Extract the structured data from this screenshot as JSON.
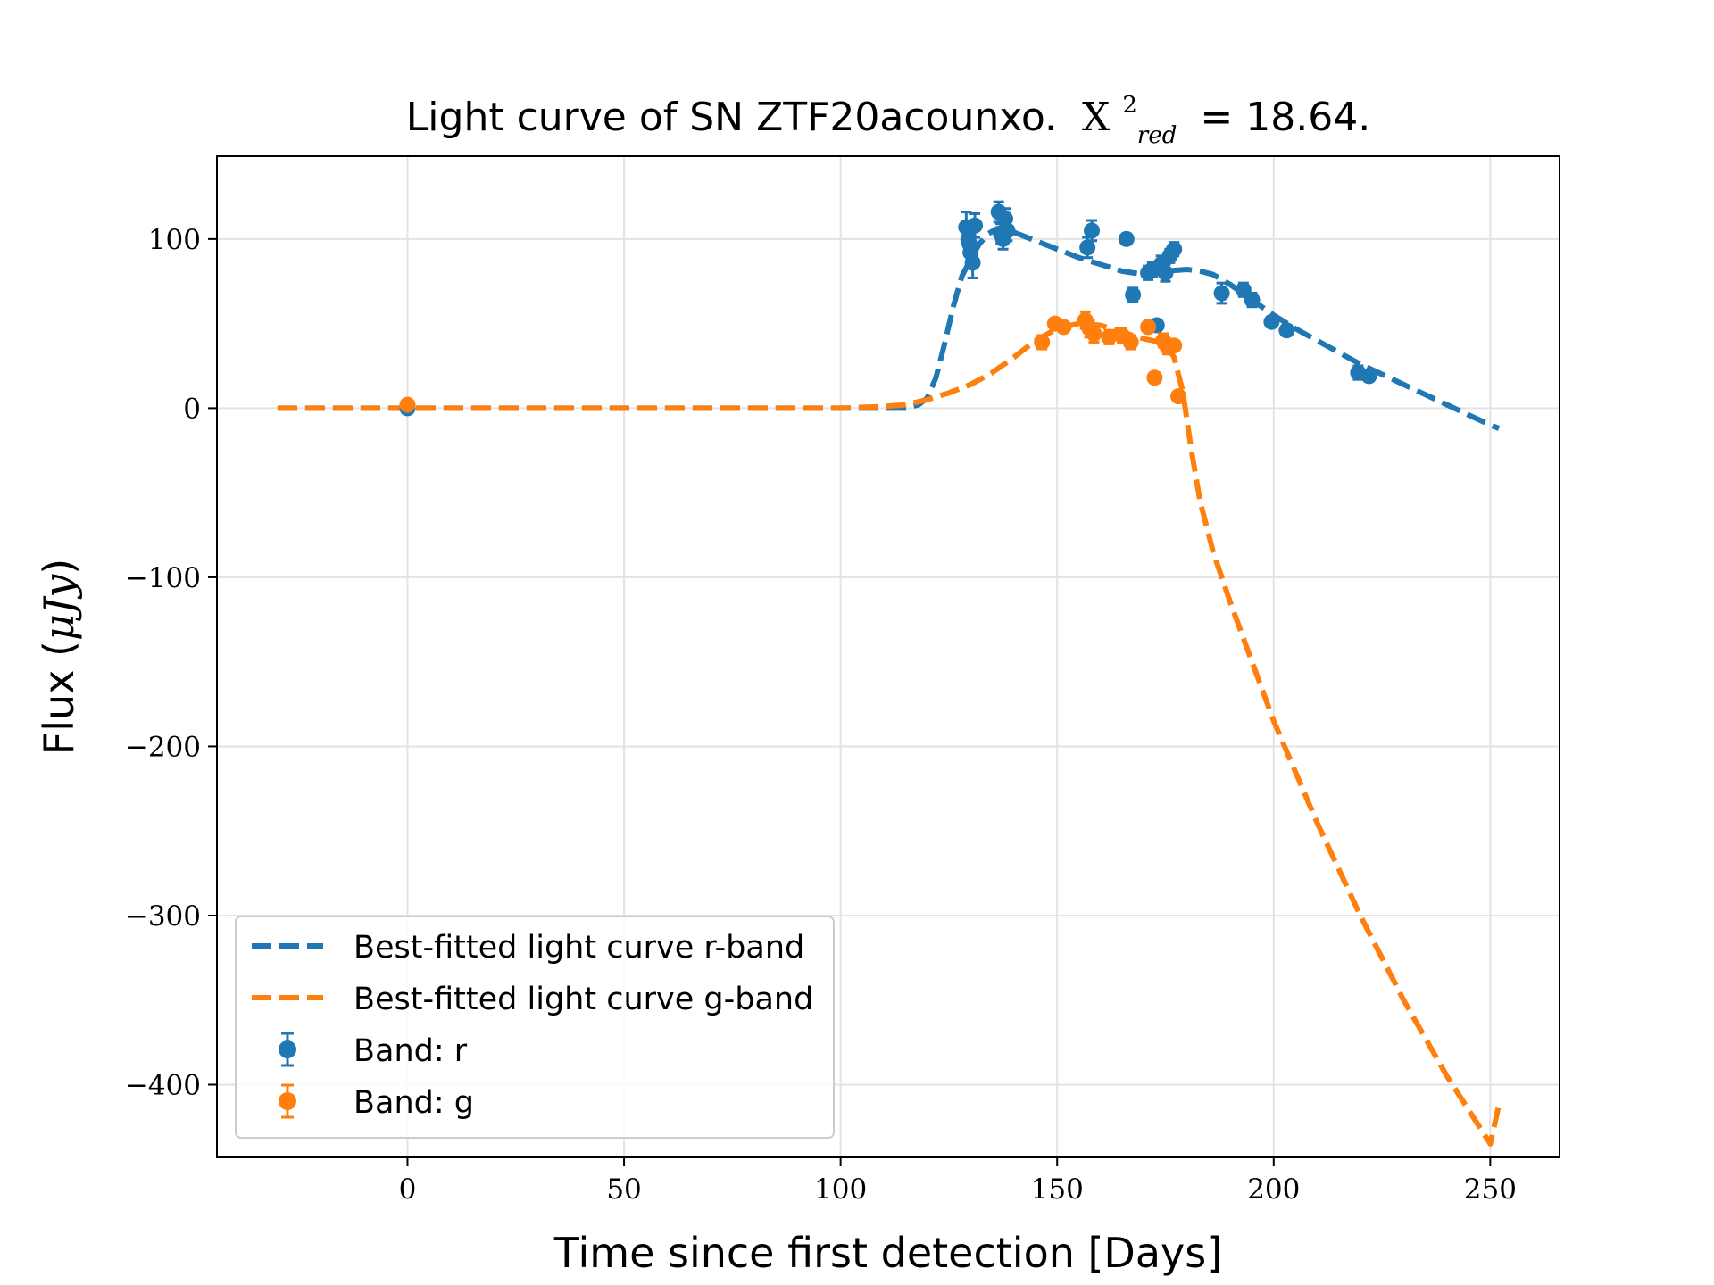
{
  "chart_data": {
    "type": "scatter",
    "title": {
      "prefix": "Light curve of SN ZTF20acounxo.",
      "symbol": "X",
      "superscript": "2",
      "subscript": "red",
      "suffix": "= 18.64."
    },
    "xlabel": "Time since first detection [Days]",
    "ylabel": {
      "prefix": "Flux (",
      "unit": "μJy",
      "suffix": ")"
    },
    "xlim": [
      -44,
      266
    ],
    "ylim": [
      -443,
      149
    ],
    "xticks": [
      0,
      50,
      100,
      150,
      200,
      250
    ],
    "yticks": [
      100,
      0,
      -100,
      -200,
      -300,
      -400
    ],
    "ytick_labels": [
      "100",
      "0",
      "−100",
      "−200",
      "−300",
      "−400"
    ],
    "grid": true,
    "legend_position": "lower-left",
    "colors": {
      "r": "#1f77b4",
      "g": "#ff7f0e"
    },
    "series": [
      {
        "name": "Best-fitted light curve r-band",
        "kind": "fit",
        "color": "#1f77b4",
        "x": [
          -30,
          0,
          50,
          100,
          115,
          118,
          120,
          122,
          124,
          126,
          128,
          130,
          132,
          134,
          136,
          138,
          140,
          145,
          150,
          155,
          160,
          165,
          170,
          175,
          180,
          183,
          186,
          190,
          195,
          200,
          205,
          210,
          215,
          220,
          225,
          230,
          235,
          240,
          245,
          250,
          252
        ],
        "y": [
          0,
          0,
          0,
          0,
          0,
          2,
          6,
          18,
          38,
          60,
          78,
          88,
          97,
          103,
          106,
          107,
          104,
          99,
          94,
          89,
          85,
          81,
          79,
          81,
          82,
          81,
          79,
          73,
          64,
          55,
          47,
          40,
          33,
          26,
          20,
          14,
          8,
          2,
          -4,
          -10,
          -12
        ]
      },
      {
        "name": "Best-fitted light curve g-band",
        "kind": "fit",
        "color": "#ff7f0e",
        "x": [
          -30,
          0,
          50,
          100,
          110,
          115,
          120,
          125,
          130,
          135,
          140,
          145,
          150,
          155,
          160,
          165,
          170,
          172,
          175,
          177,
          179,
          181,
          183,
          186,
          190,
          195,
          200,
          210,
          220,
          230,
          240,
          250,
          252
        ],
        "y": [
          0,
          0,
          0,
          0,
          1,
          2,
          5,
          9,
          14,
          21,
          30,
          40,
          47,
          50,
          49,
          45,
          41,
          40,
          38,
          30,
          10,
          -25,
          -55,
          -85,
          -115,
          -150,
          -185,
          -245,
          -300,
          -350,
          -395,
          -435,
          -412
        ]
      },
      {
        "name": "Band: r",
        "kind": "points",
        "color": "#1f77b4",
        "x": [
          0,
          129,
          129.5,
          130,
          130.5,
          131,
          129.8,
          136.5,
          137,
          137.5,
          138,
          138.5,
          157,
          158,
          166,
          167.5,
          171,
          172,
          173,
          174,
          175,
          176,
          177,
          188,
          193,
          195,
          199.5,
          203,
          219.5,
          222
        ],
        "y": [
          0,
          107,
          100,
          92,
          86,
          108,
          97,
          116,
          103,
          100,
          112,
          105,
          95,
          105,
          100,
          67,
          80,
          82,
          49,
          85,
          80,
          90,
          94,
          68,
          70,
          64,
          51,
          46,
          21,
          19
        ],
        "yerr": [
          3,
          9,
          8,
          8,
          9,
          7,
          7,
          6,
          6,
          6,
          6,
          6,
          6,
          6,
          3,
          4,
          4,
          4,
          3,
          5,
          5,
          4,
          4,
          6,
          4,
          4,
          3,
          3,
          4,
          3
        ]
      },
      {
        "name": "Band: g",
        "kind": "points",
        "color": "#ff7f0e",
        "x": [
          0,
          146.5,
          149.5,
          151.5,
          156.5,
          157.5,
          158.5,
          162,
          165,
          167,
          171,
          172.5,
          174.5,
          175.5,
          177,
          178
        ],
        "y": [
          2,
          39,
          50,
          48,
          52,
          47,
          44,
          42,
          43,
          39,
          48,
          18,
          40,
          36,
          37,
          7
        ],
        "yerr": [
          2,
          4,
          3,
          3,
          5,
          5,
          5,
          4,
          4,
          4,
          3,
          3,
          4,
          4,
          3,
          3
        ]
      }
    ]
  }
}
